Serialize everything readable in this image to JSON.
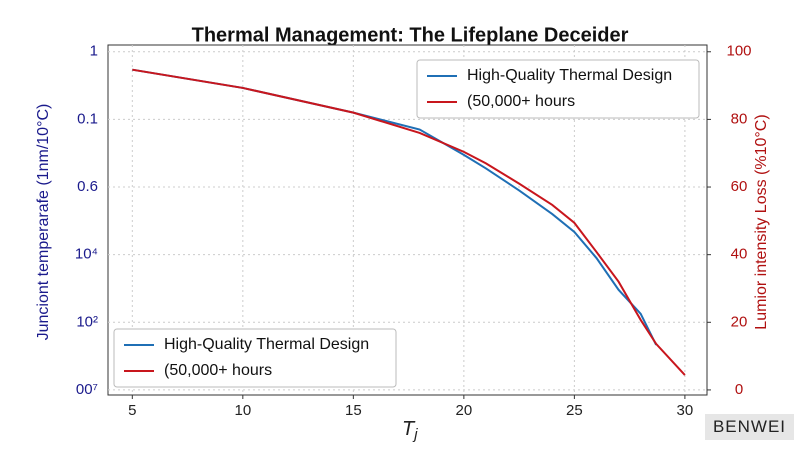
{
  "chart_data": {
    "type": "line",
    "title": "Thermal Management: The Lifeplane Deceider",
    "xlabel": {
      "main": "T",
      "sub": "j"
    },
    "ylabel": "Junciont temperarafe (1nm/10°C)",
    "y2label": "Lumior intensity Loss (%10°C)",
    "ytick_labels": [
      "1",
      "0.1",
      "0.6",
      "10⁴",
      "10²",
      "00⁷"
    ],
    "x": [
      5,
      10,
      15,
      18,
      20,
      21,
      22.5,
      24,
      25,
      26,
      27,
      28,
      28.7,
      30
    ],
    "xlim": [
      3.9,
      31
    ],
    "xticks": [
      5,
      10,
      15,
      20,
      25,
      30
    ],
    "y2lim": [
      -1.5,
      102
    ],
    "y2ticks": [
      0,
      20,
      40,
      60,
      80,
      100
    ],
    "grid": true,
    "series": [
      {
        "name": "High-Quality Thermal Design",
        "color": "#1f6fb5",
        "axis": "y2",
        "values": [
          94.7,
          89.3,
          82,
          77,
          69.5,
          65.5,
          59,
          52,
          46.7,
          39,
          29.6,
          22.5,
          13.3,
          null
        ]
      },
      {
        "name": "(50,000+ hours",
        "color": "#c8161d",
        "axis": "y2",
        "values": [
          94.7,
          89.3,
          82,
          76,
          70.4,
          67,
          61,
          54.7,
          49.4,
          40.8,
          32,
          20.7,
          13.6,
          4.4
        ]
      }
    ],
    "legend": [
      "upper right",
      "lower left"
    ],
    "watermark": "BENWEI"
  }
}
